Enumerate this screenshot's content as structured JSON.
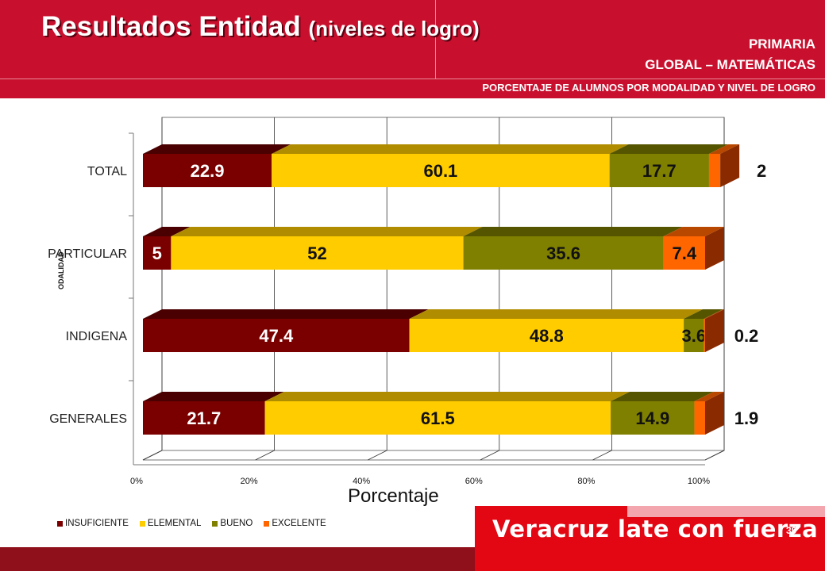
{
  "header": {
    "title": "Resultados Entidad",
    "title_sub": "(niveles de logro)",
    "level": "PRIMARIA",
    "subject": "GLOBAL – MATEMÁTICAS",
    "description": "PORCENTAJE DE ALUMNOS POR MODALIDAD Y NIVEL DE LOGRO"
  },
  "footer": {
    "slogan": "Veracruz late con fuerza",
    "page_number": "39"
  },
  "colors": {
    "header_red": "#c8102e",
    "insuficiente": "#7a0000",
    "elemental": "#ffcc00",
    "bueno": "#808000",
    "excelente": "#ff6600"
  },
  "chart_data": {
    "type": "bar",
    "orientation": "horizontal",
    "stacked": true,
    "percent": true,
    "categories": [
      "TOTAL",
      "PARTICULAR",
      "INDIGENA",
      "GENERALES"
    ],
    "series": [
      {
        "name": "INSUFICIENTE",
        "values": [
          22.9,
          5,
          47.4,
          21.7
        ],
        "labels": [
          "22.9",
          "5",
          "47.4",
          "21.7"
        ]
      },
      {
        "name": "ELEMENTAL",
        "values": [
          60.1,
          52,
          48.8,
          61.5
        ],
        "labels": [
          "60.1",
          "52",
          "48.8",
          "61.5"
        ]
      },
      {
        "name": "BUENO",
        "values": [
          17.7,
          35.6,
          3.6,
          14.9
        ],
        "labels": [
          "17.7",
          "35.6",
          "3.6",
          "14.9"
        ]
      },
      {
        "name": "EXCELENTE",
        "values": [
          2,
          7.4,
          0.2,
          1.9
        ],
        "labels": [
          "2",
          "7.4",
          "0.2",
          "1.9"
        ]
      }
    ],
    "xlabel": "Porcentaje",
    "ylabel": "ODALIDAD",
    "xlim": [
      0,
      100
    ],
    "xticks": [
      "0%",
      "20%",
      "40%",
      "60%",
      "80%",
      "100%"
    ],
    "legend_position": "bottom",
    "grid": true
  }
}
